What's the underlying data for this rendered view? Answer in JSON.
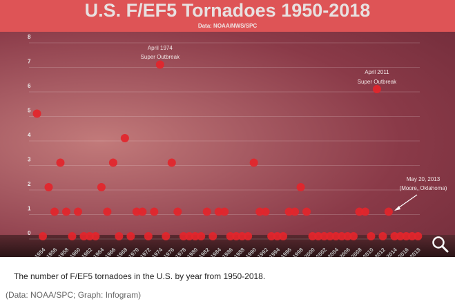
{
  "chart_data": {
    "type": "scatter",
    "title": "U.S. F/EF5 Tornadoes 1950-2018",
    "subtitle": "Data: NOAA/NWS/SPC",
    "xlabel": "",
    "ylabel": "",
    "ylim": [
      0,
      8
    ],
    "yticks": [
      "0",
      "1",
      "2",
      "3",
      "4",
      "5",
      "6",
      "7",
      "8"
    ],
    "xticks": [
      "1954",
      "1956",
      "1958",
      "1960",
      "1962",
      "1964",
      "1966",
      "1968",
      "1970",
      "1972",
      "1974",
      "1976",
      "1978",
      "1980",
      "1982",
      "1984",
      "1986",
      "1988",
      "1990",
      "1992",
      "1994",
      "1996",
      "1998",
      "2000",
      "2002",
      "2004",
      "2006",
      "2008",
      "2010",
      "2012",
      "2014",
      "2016",
      "2018"
    ],
    "grid": true,
    "point_color": "#e3252b",
    "x": [
      1953,
      1954,
      1955,
      1956,
      1957,
      1958,
      1959,
      1960,
      1961,
      1962,
      1963,
      1964,
      1965,
      1966,
      1967,
      1968,
      1969,
      1970,
      1971,
      1972,
      1973,
      1974,
      1975,
      1976,
      1977,
      1978,
      1979,
      1980,
      1981,
      1982,
      1983,
      1984,
      1985,
      1986,
      1987,
      1988,
      1989,
      1990,
      1991,
      1992,
      1993,
      1994,
      1995,
      1996,
      1997,
      1998,
      1999,
      2000,
      2001,
      2002,
      2003,
      2004,
      2005,
      2006,
      2007,
      2008,
      2009,
      2010,
      2011,
      2012,
      2013,
      2014,
      2015,
      2016,
      2017,
      2018
    ],
    "y": [
      5,
      0,
      2,
      1,
      3,
      1,
      0,
      1,
      0,
      0,
      0,
      2,
      1,
      3,
      0,
      4,
      0,
      1,
      1,
      0,
      1,
      7,
      0,
      3,
      1,
      0,
      0,
      0,
      0,
      1,
      0,
      1,
      1,
      0,
      0,
      0,
      0,
      3,
      1,
      1,
      0,
      0,
      0,
      1,
      1,
      2,
      1,
      0,
      0,
      0,
      0,
      0,
      0,
      0,
      0,
      1,
      1,
      0,
      6,
      0,
      1,
      0,
      0,
      0,
      0,
      0
    ],
    "annotations": [
      {
        "year": 1974,
        "value": 7,
        "lines": [
          "April 1974",
          "Super Outbreak"
        ]
      },
      {
        "year": 2011,
        "value": 6,
        "lines": [
          "April 2011",
          "Super Outbreak"
        ]
      },
      {
        "year": 2013,
        "value": 1,
        "lines": [
          "May 20, 2013",
          "(Moore, Oklahoma)"
        ]
      }
    ]
  },
  "caption": "The number of F/EF5 tornadoes in the U.S. by year from 1950-2018.",
  "source": "(Data: NOAA/SPC; Graph: Infogram)",
  "zoom_icon": "magnifier-icon"
}
